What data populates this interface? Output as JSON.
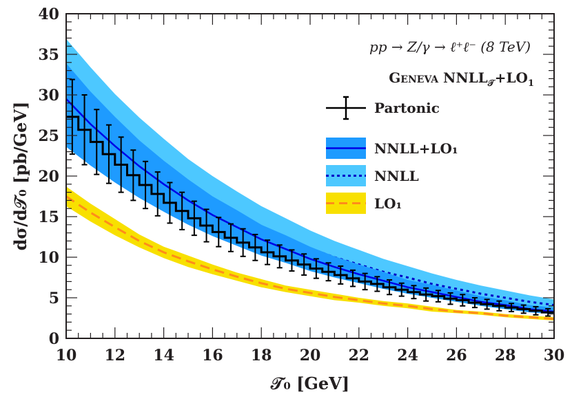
{
  "chart_data": {
    "type": "line",
    "process_label": "pp → Z/γ → ℓ⁺ℓ⁻  (8 TeV)",
    "legend_title": {
      "name": "Geneva",
      "main": "NNLL",
      "sub": "𝒯",
      "rest": "+LO",
      "rest_sub": "1"
    },
    "xlabel": "𝒯₀ [GeV]",
    "ylabel": "dσ/d𝒯₀ [pb/GeV]",
    "xlim": [
      10,
      30
    ],
    "ylim": [
      0,
      40
    ],
    "x_ticks": [
      10,
      12,
      14,
      16,
      18,
      20,
      22,
      24,
      26,
      28,
      30
    ],
    "y_ticks": [
      0,
      5,
      10,
      15,
      20,
      25,
      30,
      35,
      40
    ],
    "grid": false,
    "legend_placement": "top-right",
    "x": [
      10,
      11,
      12,
      13,
      14,
      15,
      16,
      17,
      18,
      19,
      20,
      21,
      22,
      23,
      24,
      25,
      26,
      27,
      28,
      29,
      30
    ],
    "series": [
      {
        "name": "NNLL+LO₁",
        "style": "solid band",
        "color": "#0000e6",
        "band_color": "#1e9bff",
        "central": [
          29.5,
          26.4,
          23.7,
          21.2,
          19.0,
          17.0,
          15.2,
          13.7,
          12.2,
          11.0,
          9.8,
          8.8,
          7.9,
          7.1,
          6.3,
          5.7,
          5.1,
          4.5,
          4.1,
          3.6,
          3.3
        ],
        "upper": [
          33.9,
          30.4,
          27.3,
          24.4,
          21.9,
          19.6,
          17.5,
          15.8,
          14.0,
          12.7,
          11.3,
          10.1,
          9.1,
          8.2,
          7.2,
          6.6,
          5.9,
          5.2,
          4.7,
          4.1,
          3.8
        ],
        "lower": [
          23.6,
          21.3,
          19.2,
          17.3,
          15.6,
          14.0,
          12.6,
          11.4,
          10.2,
          9.3,
          8.3,
          7.5,
          6.8,
          6.1,
          5.5,
          5.0,
          4.5,
          4.0,
          3.6,
          3.2,
          3.0
        ]
      },
      {
        "name": "NNLL",
        "style": "dotted band",
        "color": "#0000c8",
        "band_color": "#4dc8ff",
        "central": [
          30.0,
          27.2,
          24.6,
          22.3,
          20.2,
          18.2,
          16.5,
          15.0,
          13.5,
          12.3,
          11.1,
          10.0,
          9.1,
          8.2,
          7.5,
          6.7,
          6.1,
          5.5,
          5.0,
          4.5,
          4.1
        ],
        "upper": [
          36.9,
          33.4,
          30.1,
          27.2,
          24.6,
          22.1,
          20.0,
          18.1,
          16.3,
          14.8,
          13.3,
          12.0,
          10.9,
          9.8,
          8.9,
          8.0,
          7.2,
          6.5,
          5.9,
          5.3,
          4.8
        ],
        "lower": [
          24.0,
          21.8,
          19.7,
          17.8,
          16.2,
          14.6,
          13.2,
          12.0,
          10.8,
          9.8,
          8.9,
          8.0,
          7.3,
          6.6,
          6.0,
          5.4,
          4.9,
          4.4,
          4.0,
          3.6,
          3.3
        ]
      },
      {
        "name": "LO₁",
        "style": "dashed band",
        "color": "#ff8c1a",
        "band_color": "#f8e000",
        "central": [
          17.5,
          15.5,
          13.7,
          12.0,
          10.6,
          9.5,
          8.5,
          7.6,
          6.8,
          6.1,
          5.6,
          5.1,
          4.7,
          4.3,
          4.0,
          3.6,
          3.3,
          3.1,
          2.8,
          2.6,
          2.4
        ],
        "upper": [
          18.7,
          16.6,
          14.7,
          12.8,
          11.3,
          10.2,
          9.1,
          8.1,
          7.3,
          6.5,
          6.0,
          5.5,
          5.0,
          4.6,
          4.3,
          3.9,
          3.5,
          3.3,
          3.0,
          2.8,
          2.6
        ],
        "lower": [
          16.3,
          14.4,
          12.7,
          11.2,
          9.9,
          8.8,
          7.9,
          7.1,
          6.3,
          5.7,
          5.2,
          4.7,
          4.4,
          4.0,
          3.7,
          3.3,
          3.1,
          2.9,
          2.6,
          2.4,
          2.2
        ]
      }
    ],
    "histogram": {
      "name": "Partonic",
      "color": "#000000",
      "bin_edges_start": 10,
      "bin_width": 0.5,
      "values": [
        27.3,
        25.7,
        24.2,
        22.7,
        21.4,
        20.1,
        18.9,
        17.8,
        16.7,
        15.7,
        14.8,
        13.9,
        13.1,
        12.4,
        11.8,
        11.2,
        10.6,
        10.1,
        9.6,
        9.1,
        8.6,
        8.2,
        7.8,
        7.4,
        7.0,
        6.7,
        6.3,
        6.0,
        5.7,
        5.4,
        5.2,
        4.9,
        4.7,
        4.4,
        4.2,
        4.0,
        3.8,
        3.6,
        3.4,
        3.2
      ],
      "errors": [
        4.6,
        4.3,
        4.0,
        3.6,
        3.4,
        3.1,
        2.9,
        2.7,
        2.5,
        2.3,
        2.1,
        2.0,
        1.8,
        1.7,
        1.7,
        1.6,
        1.5,
        1.4,
        1.3,
        1.3,
        1.2,
        1.1,
        1.1,
        1.0,
        1.0,
        0.9,
        0.9,
        0.8,
        0.8,
        0.8,
        0.7,
        0.7,
        0.7,
        0.6,
        0.6,
        0.6,
        0.5,
        0.5,
        0.5,
        0.45
      ]
    }
  }
}
